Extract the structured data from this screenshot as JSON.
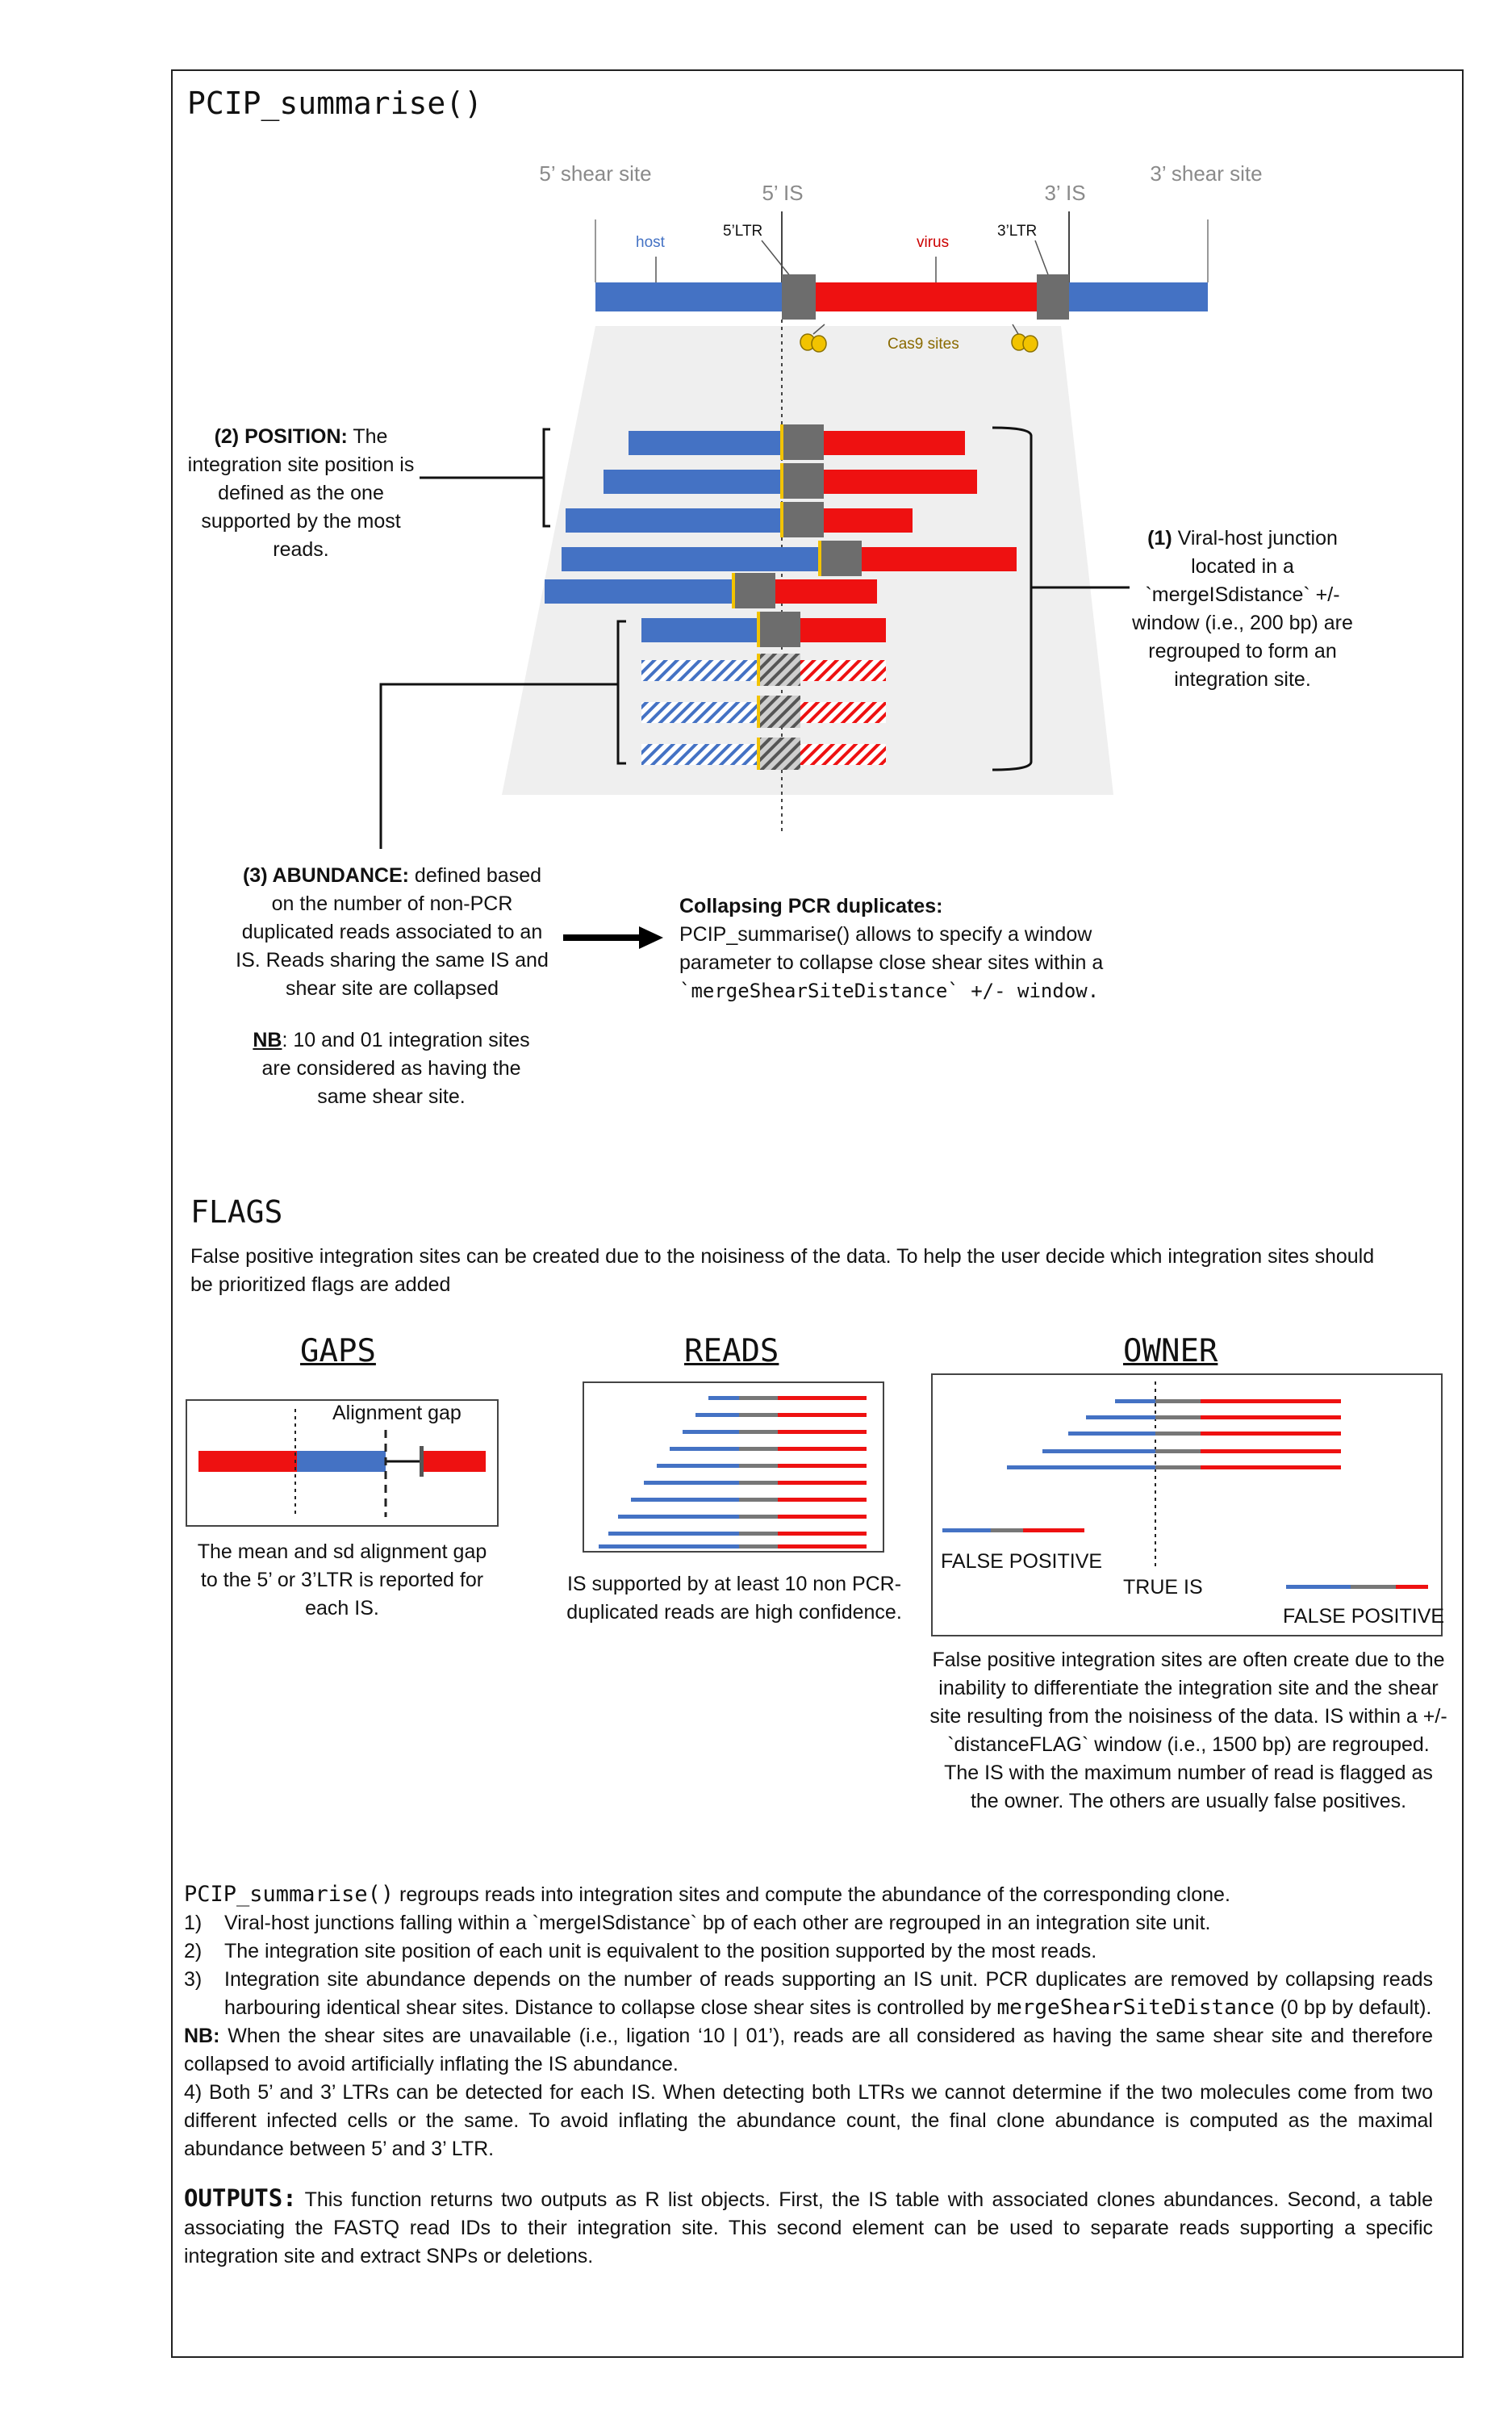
{
  "title": "PCIP_summarise()",
  "diagram": {
    "shear5": "5’ shear site",
    "shear3": "3’ shear site",
    "is5": "5’ IS",
    "is3": "3’ IS",
    "host": "host",
    "virus": "virus",
    "ltr5": "5’LTR",
    "ltr3": "3’LTR",
    "cas9": "Cas9 sites"
  },
  "position_note": {
    "head": "(2) POSITION:",
    "body": " The integration site position is defined as the one supported by the most reads."
  },
  "junction_note": {
    "head": "(1)",
    "body": " Viral-host junction located in a `mergeISdistance` +/- window (i.e., 200 bp) are regrouped to form an integration site."
  },
  "abundance_note": {
    "head": "(3) ABUNDANCE:",
    "body": " defined based on the number of non-PCR duplicated reads associated to an IS. Reads sharing the same IS and shear site are collapsed"
  },
  "nb_note": {
    "head": "NB",
    "body": ": 10 and 01 integration sites are considered as having the same shear site."
  },
  "collapse_note": {
    "head": "Collapsing PCR duplicates:",
    "body1": "PCIP_summarise() allows to specify a window parameter to collapse close shear sites within a",
    "body2": "`mergeShearSiteDistance` +/- window."
  },
  "flags": {
    "title": "FLAGS",
    "intro": "False positive integration sites can be created due to the noisiness of the data. To help the user decide which integration sites should be prioritized flags are added",
    "gaps": {
      "title": "GAPS",
      "label": "Alignment gap",
      "caption": "The mean and sd alignment gap to the 5’ or 3’LTR is reported for each IS."
    },
    "reads": {
      "title": "READS",
      "caption": "IS supported by at least 10 non PCR-duplicated reads are high confidence."
    },
    "owner": {
      "title": "OWNER",
      "fp1": "FALSE POSITIVE",
      "true_is": "TRUE IS",
      "fp2": "FALSE POSITIVE",
      "caption": "False positive integration sites are often create due to the inability to differentiate the integration site and the shear site resulting from the noisiness of the data. IS within a +/- `distanceFLAG` window (i.e., 1500 bp) are regrouped. The IS with the maximum number of read is flagged as the owner. The others are usually false positives."
    }
  },
  "summary": {
    "lead_code": "PCIP_summarise()",
    "lead_text": " regroups reads into integration sites and compute the abundance of the corresponding clone.",
    "items": [
      {
        "num": "1)",
        "text": "Viral-host junctions falling within a `mergeISdistance` bp of each other are regrouped in an integration site unit."
      },
      {
        "num": "2)",
        "text": "The integration site position of each unit is equivalent to the position supported by the most reads."
      },
      {
        "num": "3)",
        "text": "Integration site abundance depends on the number of reads supporting an IS unit. PCR duplicates are removed by collapsing reads harbouring identical shear sites. Distance to collapse close shear sites is controlled by ",
        "code": "mergeShearSiteDistance",
        "tail": " (0 bp by default)."
      }
    ],
    "nb_head": "NB:",
    "nb_text": " When the shear sites are unavailable (i.e., ligation ‘10 | 01’), reads are all considered as having the same shear site and therefore collapsed to avoid artificially inflating the IS abundance.",
    "item4": "4) Both 5’ and 3’ LTRs can be detected for each IS. When detecting both LTRs we cannot determine if the two molecules come from two different infected cells or the same. To avoid inflating the abundance count, the final clone abundance is computed as the maximal abundance between 5’ and 3’ LTR.",
    "outputs_head": "OUTPUTS:",
    "outputs_text": " This function returns two outputs as R list objects. First, the IS table with associated clones abundances. Second, a table associating the FASTQ read IDs to their integration site. This second element can be used to separate reads supporting a specific integration site and extract SNPs or deletions."
  },
  "colors": {
    "host": "#4472c4",
    "virus": "#ee1111",
    "ltr": "#6d6d6d",
    "cas9": "#f2c300"
  }
}
